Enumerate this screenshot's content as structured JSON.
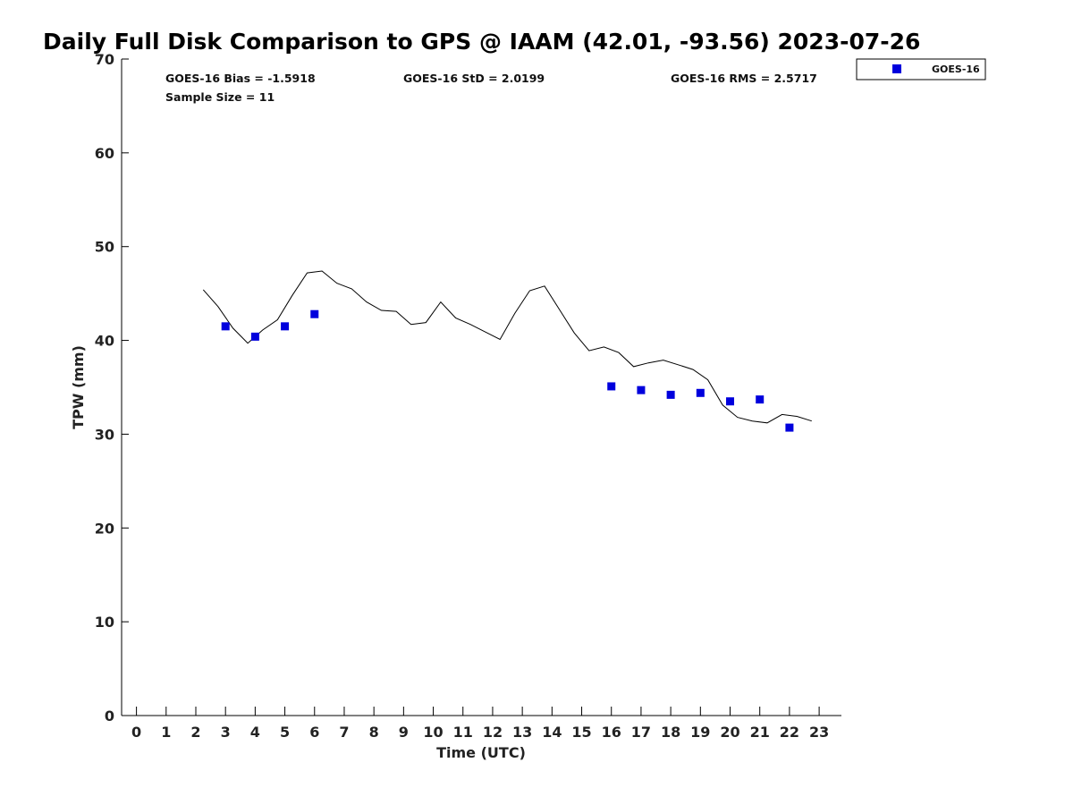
{
  "chart_data": {
    "type": "scatter",
    "title": "Daily Full Disk Comparison to GPS @ IAAM (42.01, -93.56) 2023-07-26",
    "xlabel": "Time (UTC)",
    "ylabel": "TPW (mm)",
    "xlim": [
      -0.5,
      23.75
    ],
    "ylim": [
      0,
      70
    ],
    "xticks": [
      0,
      1,
      2,
      3,
      4,
      5,
      6,
      7,
      8,
      9,
      10,
      11,
      12,
      13,
      14,
      15,
      16,
      17,
      18,
      19,
      20,
      21,
      22,
      23
    ],
    "yticks": [
      0,
      10,
      20,
      30,
      40,
      50,
      60,
      70
    ],
    "stats": {
      "bias": "GOES-16 Bias = -1.5918",
      "std": "GOES-16 StD = 2.0199",
      "rms": "GOES-16 RMS = 2.5717",
      "sample": "Sample Size = 11"
    },
    "legend": {
      "position": "top-right",
      "label": "GOES-16",
      "color": "#0000dd"
    },
    "gps_line": {
      "name": "GPS",
      "color": "#000000",
      "x": [
        2.25,
        2.75,
        3.25,
        3.75,
        4.25,
        4.75,
        5.25,
        5.75,
        6.25,
        6.75,
        7.25,
        7.75,
        8.25,
        8.75,
        9.25,
        9.75,
        10.25,
        10.75,
        11.25,
        11.75,
        12.25,
        12.75,
        13.25,
        13.75,
        14.25,
        14.75,
        15.25,
        15.75,
        16.25,
        16.75,
        17.25,
        17.75,
        18.25,
        18.75,
        19.25,
        19.75,
        20.25,
        20.75,
        21.25,
        21.75,
        22.25,
        22.75
      ],
      "y": [
        45.4,
        43.6,
        41.3,
        39.7,
        41.1,
        42.2,
        44.8,
        47.2,
        47.4,
        46.1,
        45.5,
        44.1,
        43.2,
        43.1,
        41.7,
        41.9,
        44.1,
        42.4,
        41.7,
        40.9,
        40.1,
        42.9,
        45.3,
        45.8,
        43.3,
        40.8,
        38.9,
        39.3,
        38.7,
        37.2,
        37.6,
        37.9,
        37.4,
        36.9,
        35.8,
        33.1,
        31.8,
        31.4,
        31.2,
        32.1,
        31.9,
        31.4
      ]
    },
    "series": [
      {
        "name": "GOES-16",
        "color": "#0000dd",
        "x": [
          3,
          4,
          5,
          6,
          16,
          17,
          18,
          19,
          20,
          21,
          22
        ],
        "y": [
          41.5,
          40.4,
          41.5,
          42.8,
          35.1,
          34.7,
          34.2,
          34.4,
          33.5,
          33.7,
          30.7
        ]
      }
    ]
  }
}
